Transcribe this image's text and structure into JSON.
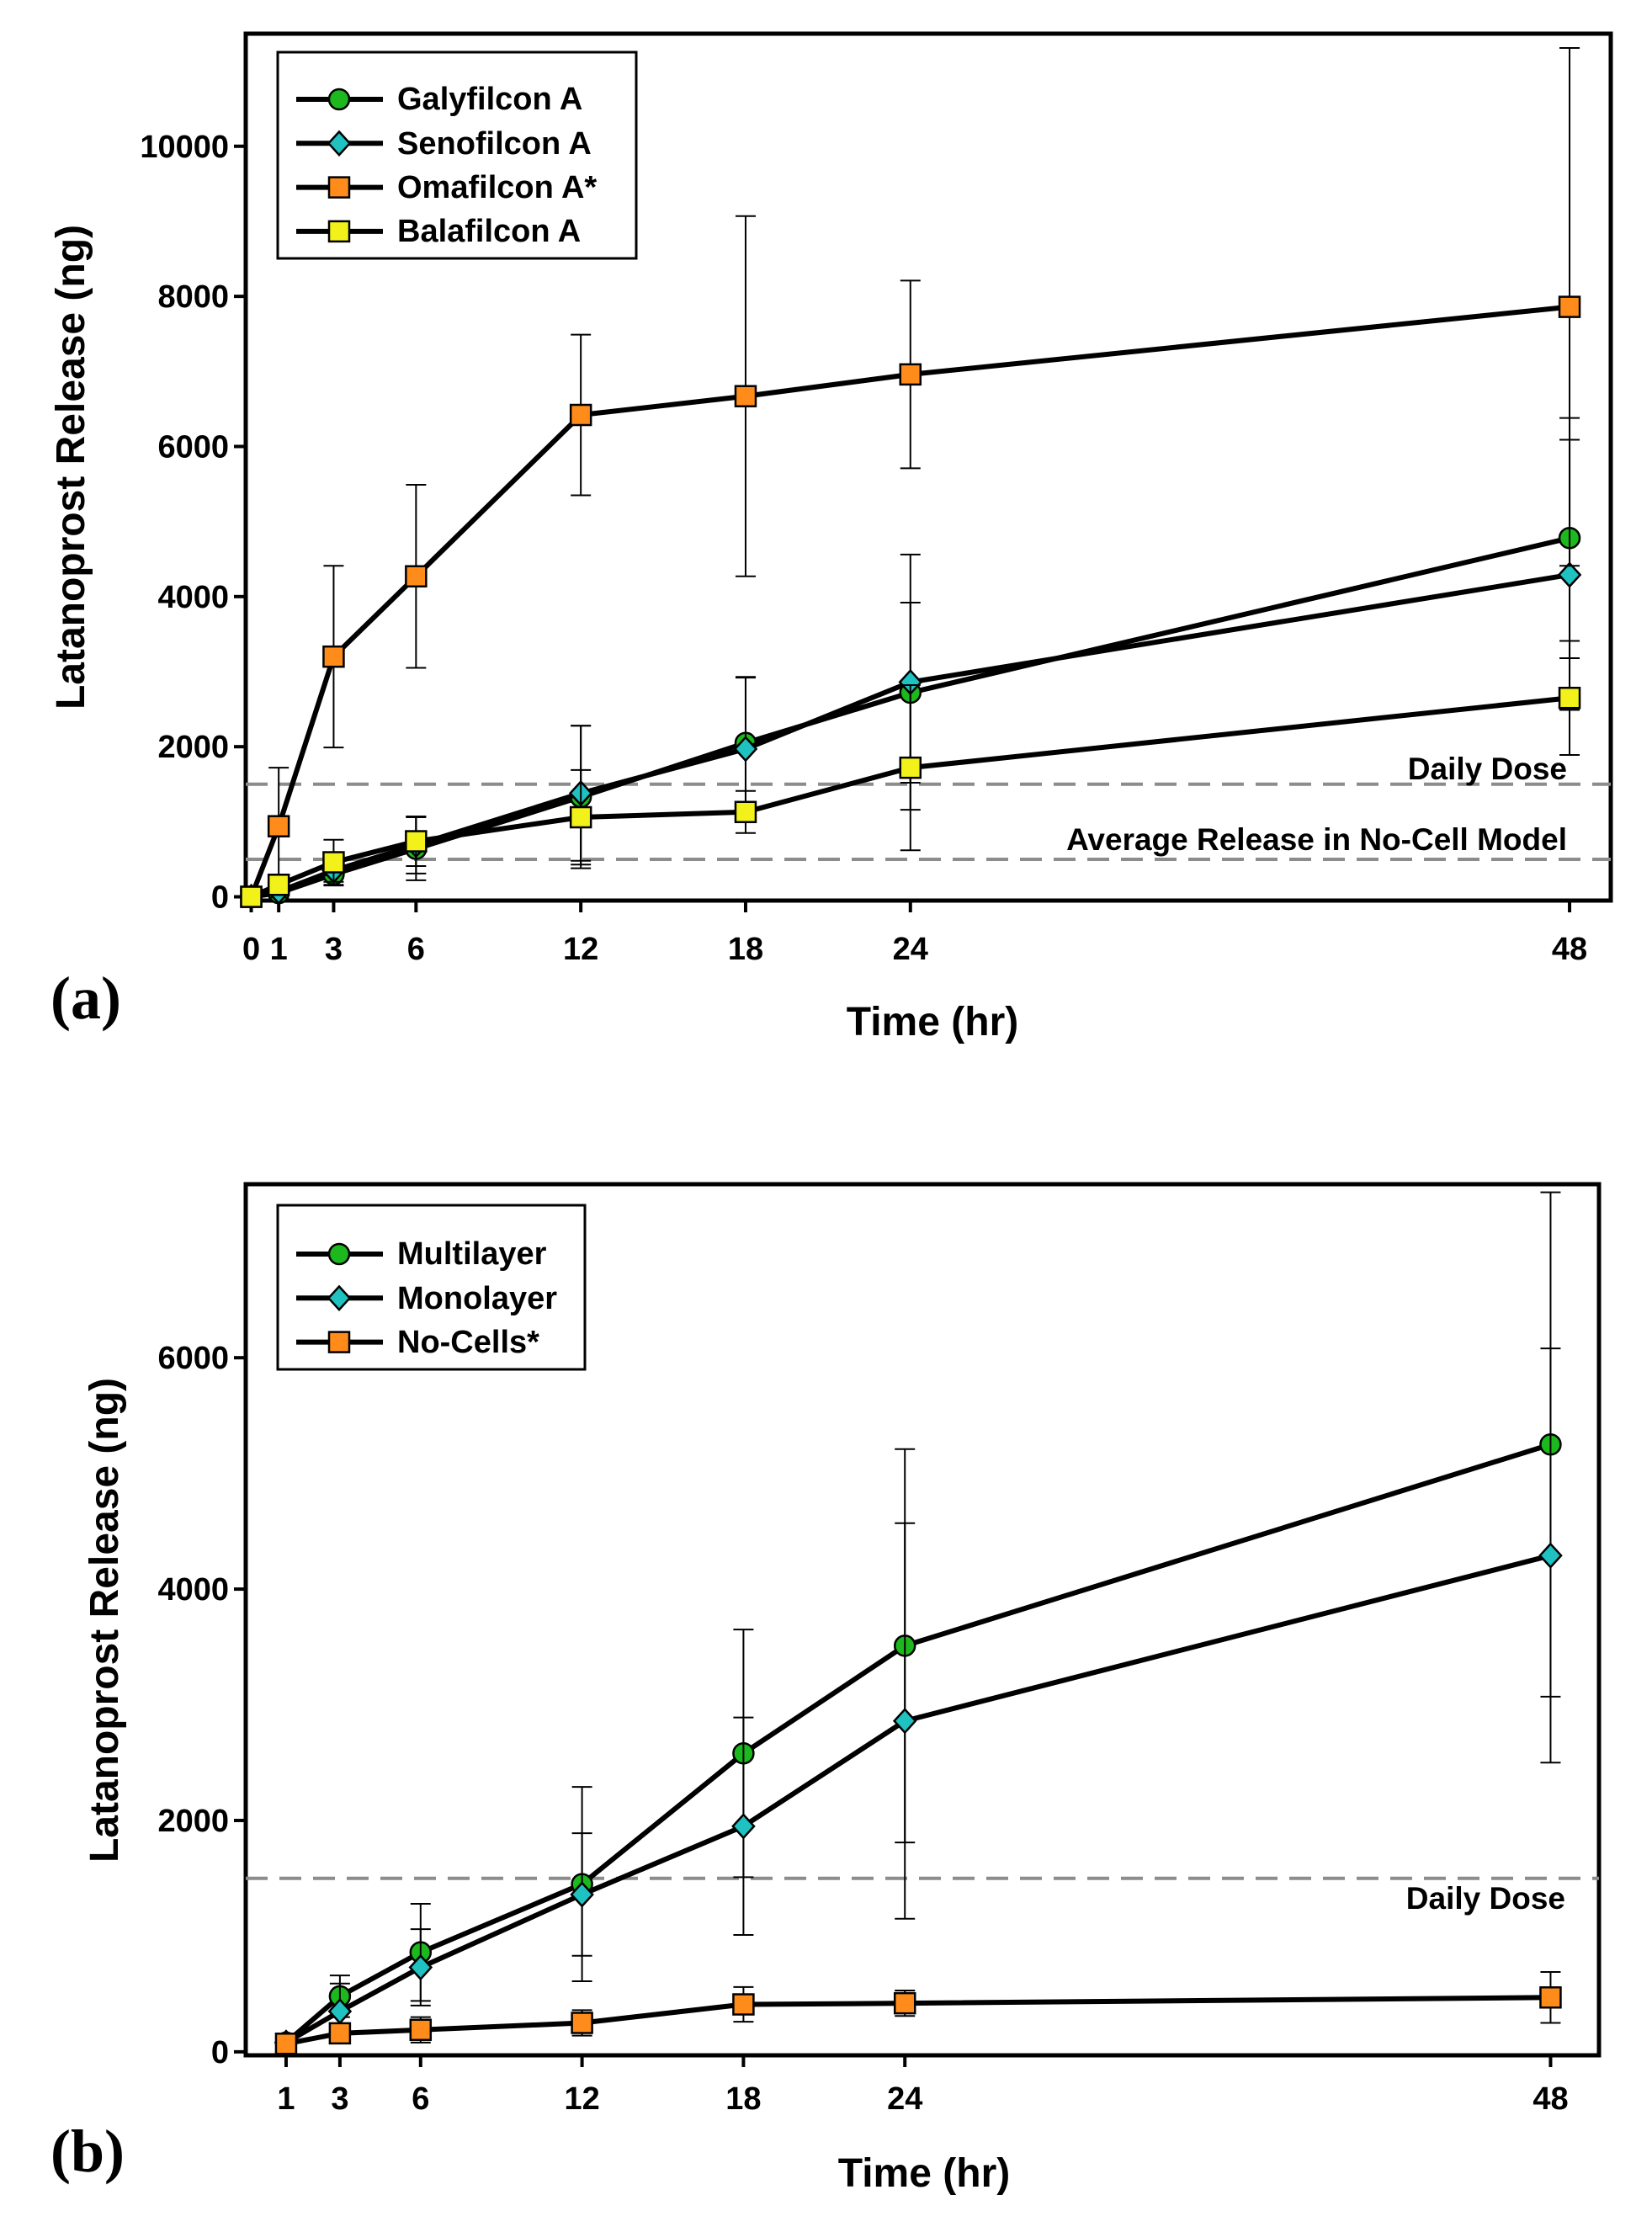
{
  "chart_data": [
    {
      "type": "line",
      "panel_label": "(a)",
      "xlabel": "Time (hr)",
      "ylabel": "Latanoprost Release (ng)",
      "x": [
        0,
        1,
        3,
        6,
        12,
        18,
        24,
        48
      ],
      "xticks": [
        0,
        1,
        3,
        6,
        12,
        18,
        24,
        48
      ],
      "xlim": [
        -0.2,
        49.5
      ],
      "yticks": [
        0,
        2000,
        4000,
        6000,
        8000,
        10000
      ],
      "ylim": [
        -50,
        11500
      ],
      "grid": false,
      "legend_position": "top-left",
      "series": [
        {
          "name": "Galyfilcon A",
          "marker": "circle",
          "color": "#1db81d",
          "values": [
            0,
            50,
            300,
            640,
            1330,
            2050,
            2720,
            4780
          ],
          "errors": [
            0,
            80,
            150,
            420,
            950,
            880,
            1200,
            1600
          ]
        },
        {
          "name": "Senofilcon A",
          "marker": "diamond",
          "color": "#1fc1c1",
          "values": [
            0,
            70,
            350,
            690,
            1380,
            1970,
            2860,
            4290
          ],
          "errors": [
            0,
            80,
            150,
            380,
            900,
            950,
            1700,
            1800
          ]
        },
        {
          "name": "Omafilcon A*",
          "marker": "square",
          "color": "#ff8c1a",
          "values": [
            0,
            940,
            3200,
            4270,
            6420,
            6670,
            6960,
            7860
          ],
          "errors": [
            0,
            780,
            1210,
            1220,
            1070,
            2400,
            1250,
            3450
          ]
        },
        {
          "name": "Balafilcon A",
          "marker": "square",
          "color": "#f2f21a",
          "values": [
            0,
            160,
            460,
            740,
            1060,
            1130,
            1720,
            2650
          ],
          "errors": [
            0,
            100,
            300,
            330,
            630,
            280,
            1100,
            760
          ]
        }
      ],
      "reference_lines": [
        {
          "label": "Daily Dose",
          "value": 1500
        },
        {
          "label": "Average Release in No-Cell Model",
          "value": 500
        }
      ]
    },
    {
      "type": "line",
      "panel_label": "(b)",
      "xlabel": "Time (hr)",
      "ylabel": "Latanoprost Release (ng)",
      "x": [
        1,
        3,
        6,
        12,
        18,
        24,
        48
      ],
      "xticks": [
        1,
        3,
        6,
        12,
        18,
        24,
        48
      ],
      "xlim": [
        -0.5,
        49.8
      ],
      "yticks": [
        0,
        2000,
        4000,
        6000
      ],
      "ylim": [
        -30,
        7500
      ],
      "grid": false,
      "legend_position": "top-left",
      "series": [
        {
          "name": "Multilayer",
          "marker": "circle",
          "color": "#1db81d",
          "values": [
            80,
            480,
            860,
            1450,
            2580,
            3510,
            5250
          ],
          "errors": [
            50,
            180,
            420,
            840,
            1070,
            1700,
            2180
          ]
        },
        {
          "name": "Monolayer",
          "marker": "diamond",
          "color": "#1fc1c1",
          "values": [
            80,
            350,
            730,
            1360,
            1950,
            2860,
            4290
          ],
          "errors": [
            50,
            240,
            330,
            530,
            940,
            1710,
            1790
          ]
        },
        {
          "name": "No-Cells*",
          "marker": "square",
          "color": "#ff8c1a",
          "values": [
            70,
            160,
            190,
            250,
            410,
            420,
            470
          ],
          "errors": [
            40,
            80,
            110,
            110,
            150,
            110,
            220
          ]
        }
      ],
      "reference_lines": [
        {
          "label": "Daily Dose",
          "value": 1500
        }
      ]
    }
  ]
}
